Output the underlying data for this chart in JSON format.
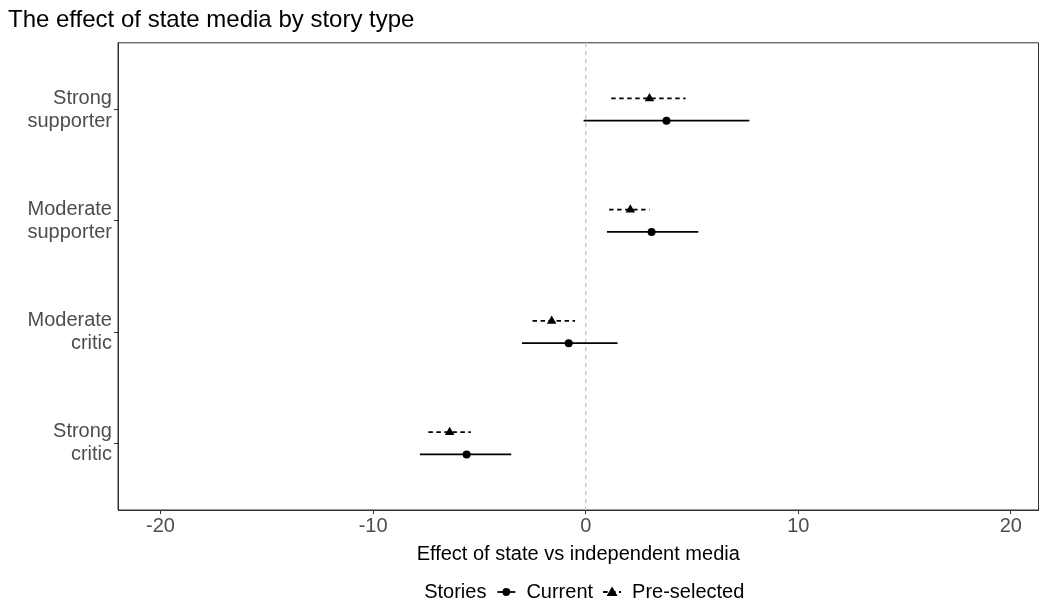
{
  "chart_data": {
    "type": "scatter",
    "title": "The effect of state media by story type",
    "xlabel": "Effect of state vs independent media",
    "legend_title": "Stories",
    "orientation": "horizontal",
    "categories": [
      "Strong supporter",
      "Moderate supporter",
      "Moderate critic",
      "Strong critic"
    ],
    "series": [
      {
        "name": "Current",
        "color": "#000000",
        "marker": "circle",
        "line_style": "solid",
        "values": [
          3.8,
          3.1,
          -0.8,
          -5.6
        ],
        "errors": [
          [
            -0.1,
            7.7
          ],
          [
            1.0,
            5.3
          ],
          [
            -3.0,
            1.5
          ],
          [
            -7.8,
            -3.5
          ]
        ]
      },
      {
        "name": "Pre-selected",
        "color": "#000000",
        "marker": "triangle",
        "line_style": "dashed",
        "values": [
          3.0,
          2.1,
          -1.6,
          -6.4
        ],
        "errors": [
          [
            1.2,
            4.7
          ],
          [
            1.1,
            3.0
          ],
          [
            -2.5,
            -0.5
          ],
          [
            -7.4,
            -5.4
          ]
        ]
      }
    ],
    "xlim": [
      -22,
      21.3
    ],
    "xticks": [
      -20,
      -10,
      0,
      10,
      20
    ],
    "ref_lines": [
      {
        "axis": "x",
        "value": 0,
        "color": "#cccccc",
        "line_style": "dashed"
      }
    ],
    "legend": "bottom"
  }
}
